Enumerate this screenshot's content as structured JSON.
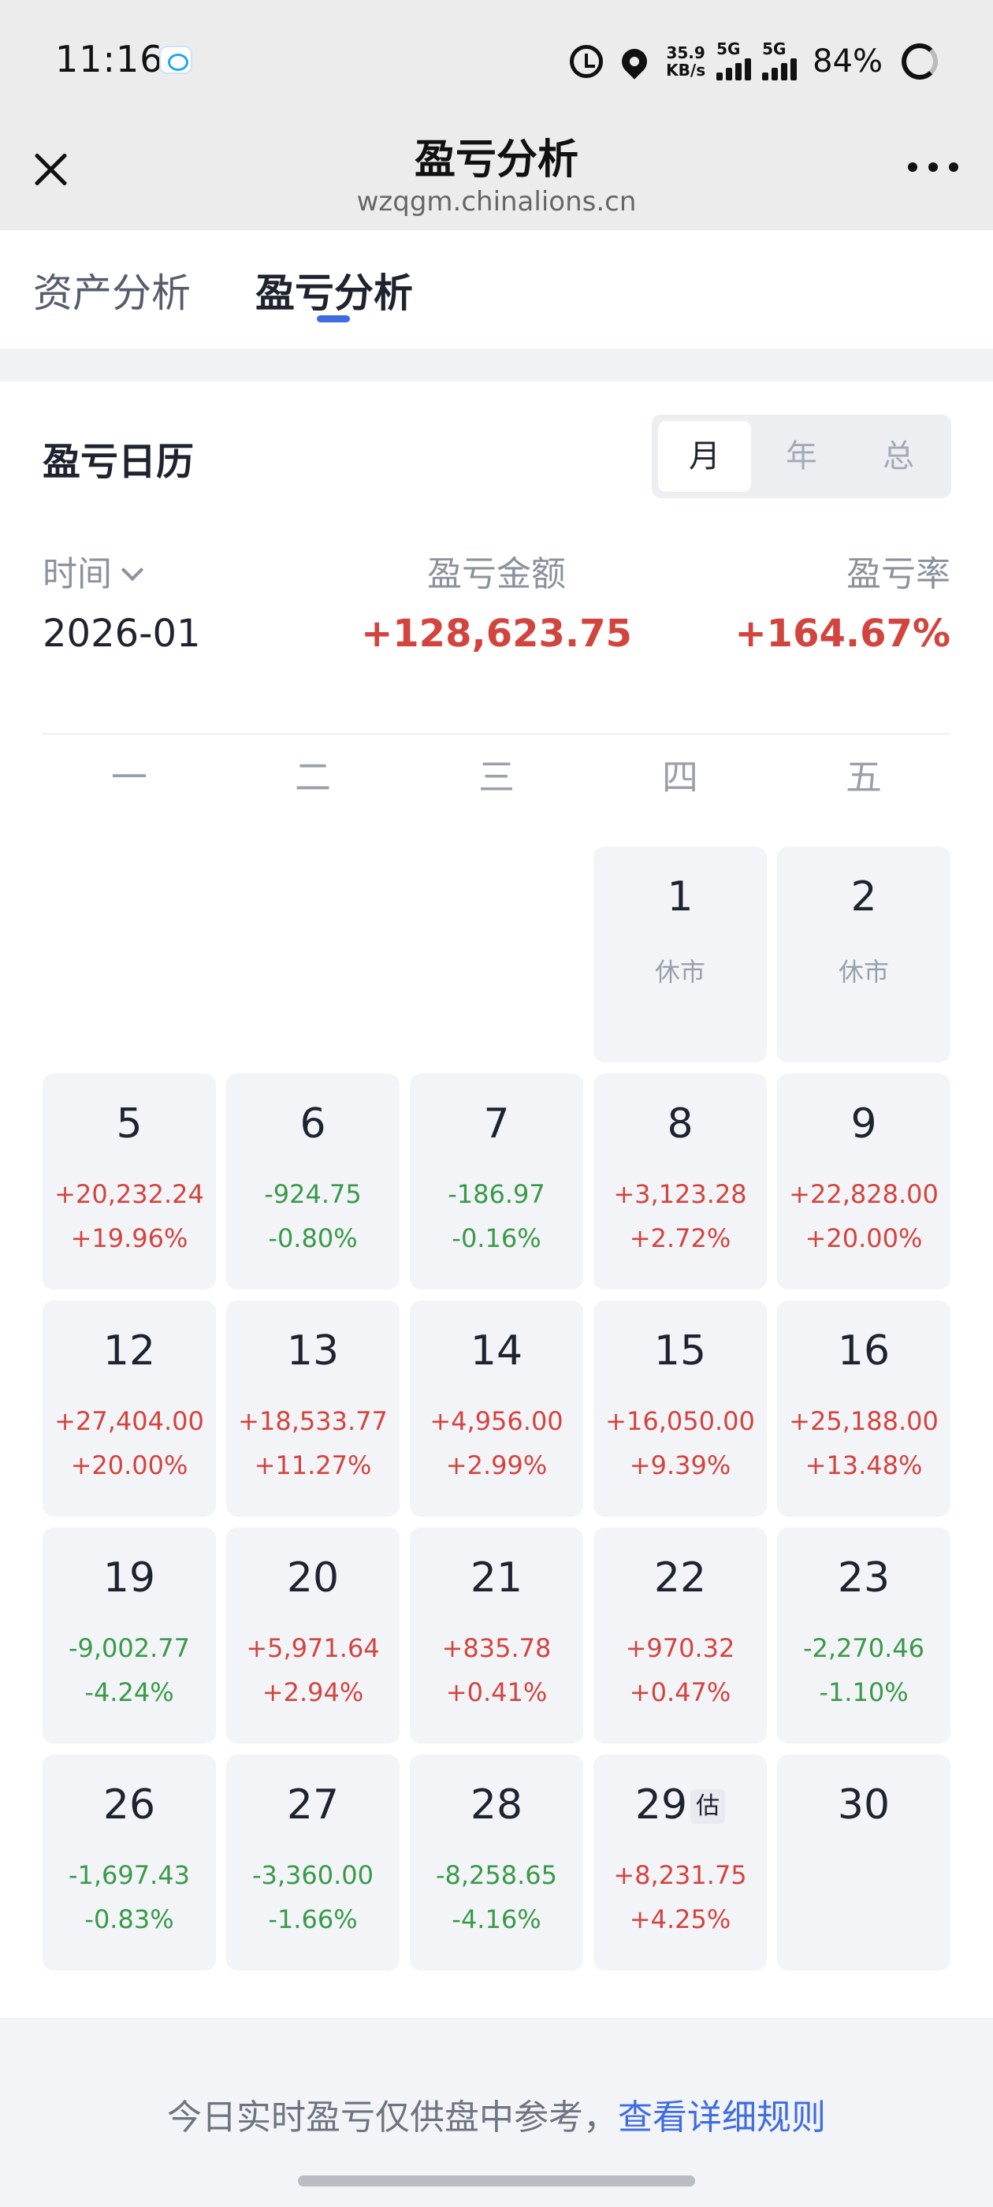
{
  "status_bar": {
    "time": "11:16",
    "net_speed_value": "35.9",
    "net_speed_unit": "KB/s",
    "network_1": "5G",
    "network_2": "5G",
    "battery": "84%"
  },
  "titlebar": {
    "title": "盈亏分析",
    "url": "wzqgm.chinalions.cn"
  },
  "tabs": [
    {
      "label": "资产分析",
      "active": false
    },
    {
      "label": "盈亏分析",
      "active": true
    }
  ],
  "calendar": {
    "title": "盈亏日历",
    "segments": [
      {
        "label": "月",
        "active": true
      },
      {
        "label": "年",
        "active": false
      },
      {
        "label": "总",
        "active": false
      }
    ],
    "headers": {
      "time": "时间",
      "amount": "盈亏金额",
      "rate": "盈亏率"
    },
    "summary": {
      "period": "2026-01",
      "amount": "+128,623.75",
      "rate": "+164.67%"
    },
    "weekdays": [
      "一",
      "二",
      "三",
      "四",
      "五"
    ],
    "days": [
      {
        "day": "1",
        "status": "休市"
      },
      {
        "day": "2",
        "status": "休市"
      },
      {
        "day": "5",
        "amount": "+20,232.24",
        "pct": "+19.96%",
        "sign": "up"
      },
      {
        "day": "6",
        "amount": "-924.75",
        "pct": "-0.80%",
        "sign": "down"
      },
      {
        "day": "7",
        "amount": "-186.97",
        "pct": "-0.16%",
        "sign": "down"
      },
      {
        "day": "8",
        "amount": "+3,123.28",
        "pct": "+2.72%",
        "sign": "up"
      },
      {
        "day": "9",
        "amount": "+22,828.00",
        "pct": "+20.00%",
        "sign": "up"
      },
      {
        "day": "12",
        "amount": "+27,404.00",
        "pct": "+20.00%",
        "sign": "up"
      },
      {
        "day": "13",
        "amount": "+18,533.77",
        "pct": "+11.27%",
        "sign": "up"
      },
      {
        "day": "14",
        "amount": "+4,956.00",
        "pct": "+2.99%",
        "sign": "up"
      },
      {
        "day": "15",
        "amount": "+16,050.00",
        "pct": "+9.39%",
        "sign": "up"
      },
      {
        "day": "16",
        "amount": "+25,188.00",
        "pct": "+13.48%",
        "sign": "up"
      },
      {
        "day": "19",
        "amount": "-9,002.77",
        "pct": "-4.24%",
        "sign": "down"
      },
      {
        "day": "20",
        "amount": "+5,971.64",
        "pct": "+2.94%",
        "sign": "up"
      },
      {
        "day": "21",
        "amount": "+835.78",
        "pct": "+0.41%",
        "sign": "up"
      },
      {
        "day": "22",
        "amount": "+970.32",
        "pct": "+0.47%",
        "sign": "up"
      },
      {
        "day": "23",
        "amount": "-2,270.46",
        "pct": "-1.10%",
        "sign": "down"
      },
      {
        "day": "26",
        "amount": "-1,697.43",
        "pct": "-0.83%",
        "sign": "down"
      },
      {
        "day": "27",
        "amount": "-3,360.00",
        "pct": "-1.66%",
        "sign": "down"
      },
      {
        "day": "28",
        "amount": "-8,258.65",
        "pct": "-4.16%",
        "sign": "down"
      },
      {
        "day": "29",
        "badge": "估",
        "amount": "+8,231.75",
        "pct": "+4.25%",
        "sign": "up"
      },
      {
        "day": "30"
      }
    ]
  },
  "footer": {
    "note": "今日实时盈亏仅供盘中参考，",
    "link": "查看详细规则"
  }
}
